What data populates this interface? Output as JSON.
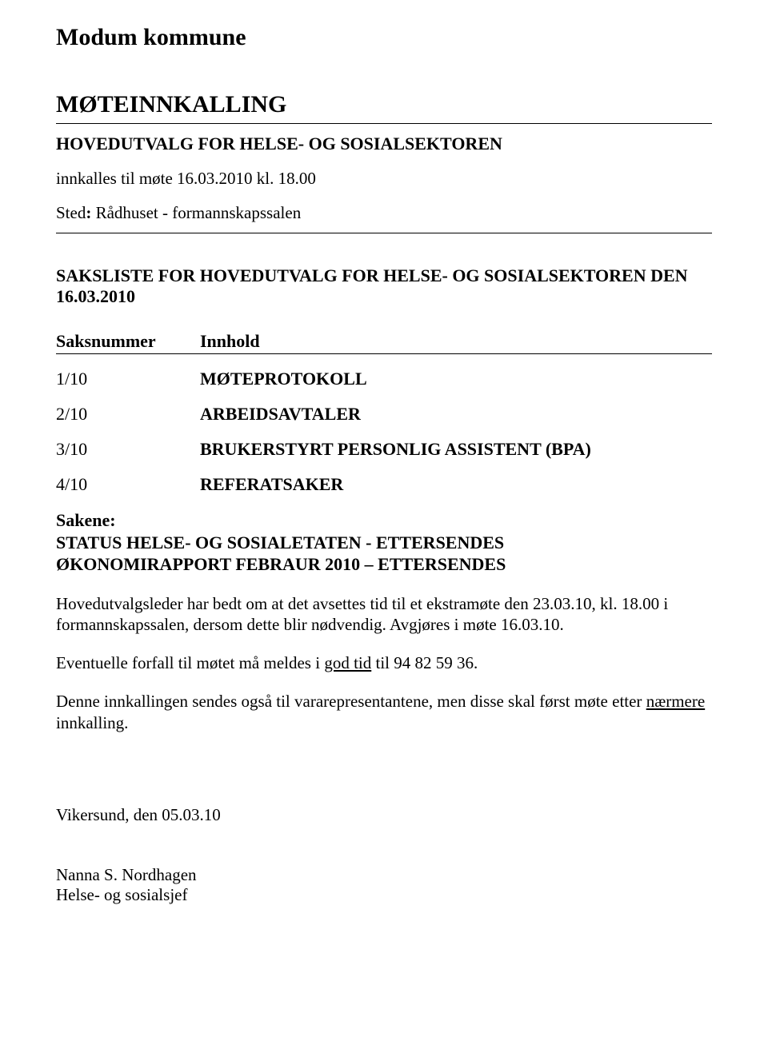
{
  "kommune": "Modum kommune",
  "title": "MØTEINNKALLING",
  "hovedutvalg": "HOVEDUTVALG FOR HELSE- OG SOSIALSEKTOREN",
  "innkalles": "innkalles til møte 16.03.2010 kl. 18.00",
  "sted_label": "Sted",
  "colon": ":",
  "sted_value": " Rådhuset - formannskapssalen",
  "saksliste_head": "SAKSLISTE FOR HOVEDUTVALG FOR HELSE- OG SOSIALSEKTOREN DEN 16.03.2010",
  "table_headers": {
    "col1": "Saksnummer",
    "col2": "Innhold"
  },
  "saker": [
    {
      "num": "1/10",
      "title": "MØTEPROTOKOLL"
    },
    {
      "num": "2/10",
      "title": "ARBEIDSAVTALER"
    },
    {
      "num": "3/10",
      "title": "BRUKERSTYRT PERSONLIG ASSISTENT (BPA)"
    },
    {
      "num": "4/10",
      "title": "REFERATSAKER"
    }
  ],
  "sakene": {
    "label": "Sakene:",
    "line1": "STATUS HELSE- OG SOSIALETATEN - ETTERSENDES",
    "line2": "ØKONOMIRAPPORT FEBRAUR 2010 – ETTERSENDES"
  },
  "para1": "Hovedutvalgsleder har bedt om at det avsettes tid til et ekstramøte den 23.03.10, kl. 18.00 i formannskapssalen, dersom dette blir nødvendig. Avgjøres i møte 16.03.10.",
  "para2_pre": "Eventuelle forfall til møtet må meldes i ",
  "para2_underline": "god tid",
  "para2_post": " til 94 82 59 36.",
  "para3_pre": "Denne innkallingen sendes også til vararepresentantene, men disse skal først møte etter ",
  "para3_underline": "nærmere",
  "para3_post": " innkalling.",
  "signoff": {
    "date": "Vikersund, den 05.03.10",
    "name": "Nanna S. Nordhagen",
    "role": "Helse- og sosialsjef"
  }
}
